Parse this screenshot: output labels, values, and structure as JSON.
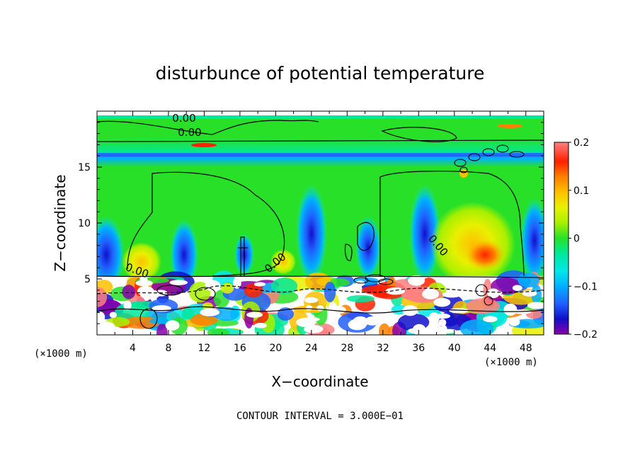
{
  "chart_data": {
    "type": "heatmap",
    "title": "disturbunce of potential temperature",
    "xlabel": "X−coordinate",
    "ylabel": "Z−coordinate",
    "x_unit_left": "(×1000 m)",
    "x_unit_right": "(×1000 m)",
    "xlim": [
      0,
      50
    ],
    "ylim": [
      0,
      20
    ],
    "x_ticks": [
      "4",
      "8",
      "12",
      "16",
      "20",
      "24",
      "28",
      "32",
      "36",
      "40",
      "44",
      "48"
    ],
    "y_ticks": [
      "5",
      "10",
      "15"
    ],
    "colorbar": {
      "range": [
        -0.2,
        0.2
      ],
      "tick_labels": [
        "0.2",
        "0.1",
        "0",
        "−0.1",
        "−0.2"
      ],
      "tick_values": [
        0.2,
        0.1,
        0,
        -0.1,
        -0.2
      ],
      "colors": [
        "#8a00a8",
        "#1010c8",
        "#2060ff",
        "#00b0ff",
        "#00e8e8",
        "#00e89a",
        "#28e028",
        "#a8f000",
        "#e8f000",
        "#ffc000",
        "#ff8000",
        "#ff2000",
        "#ff8080"
      ]
    },
    "contour_label": "0.00",
    "footnote": "CONTOUR INTERVAL = 3.000E−01"
  }
}
